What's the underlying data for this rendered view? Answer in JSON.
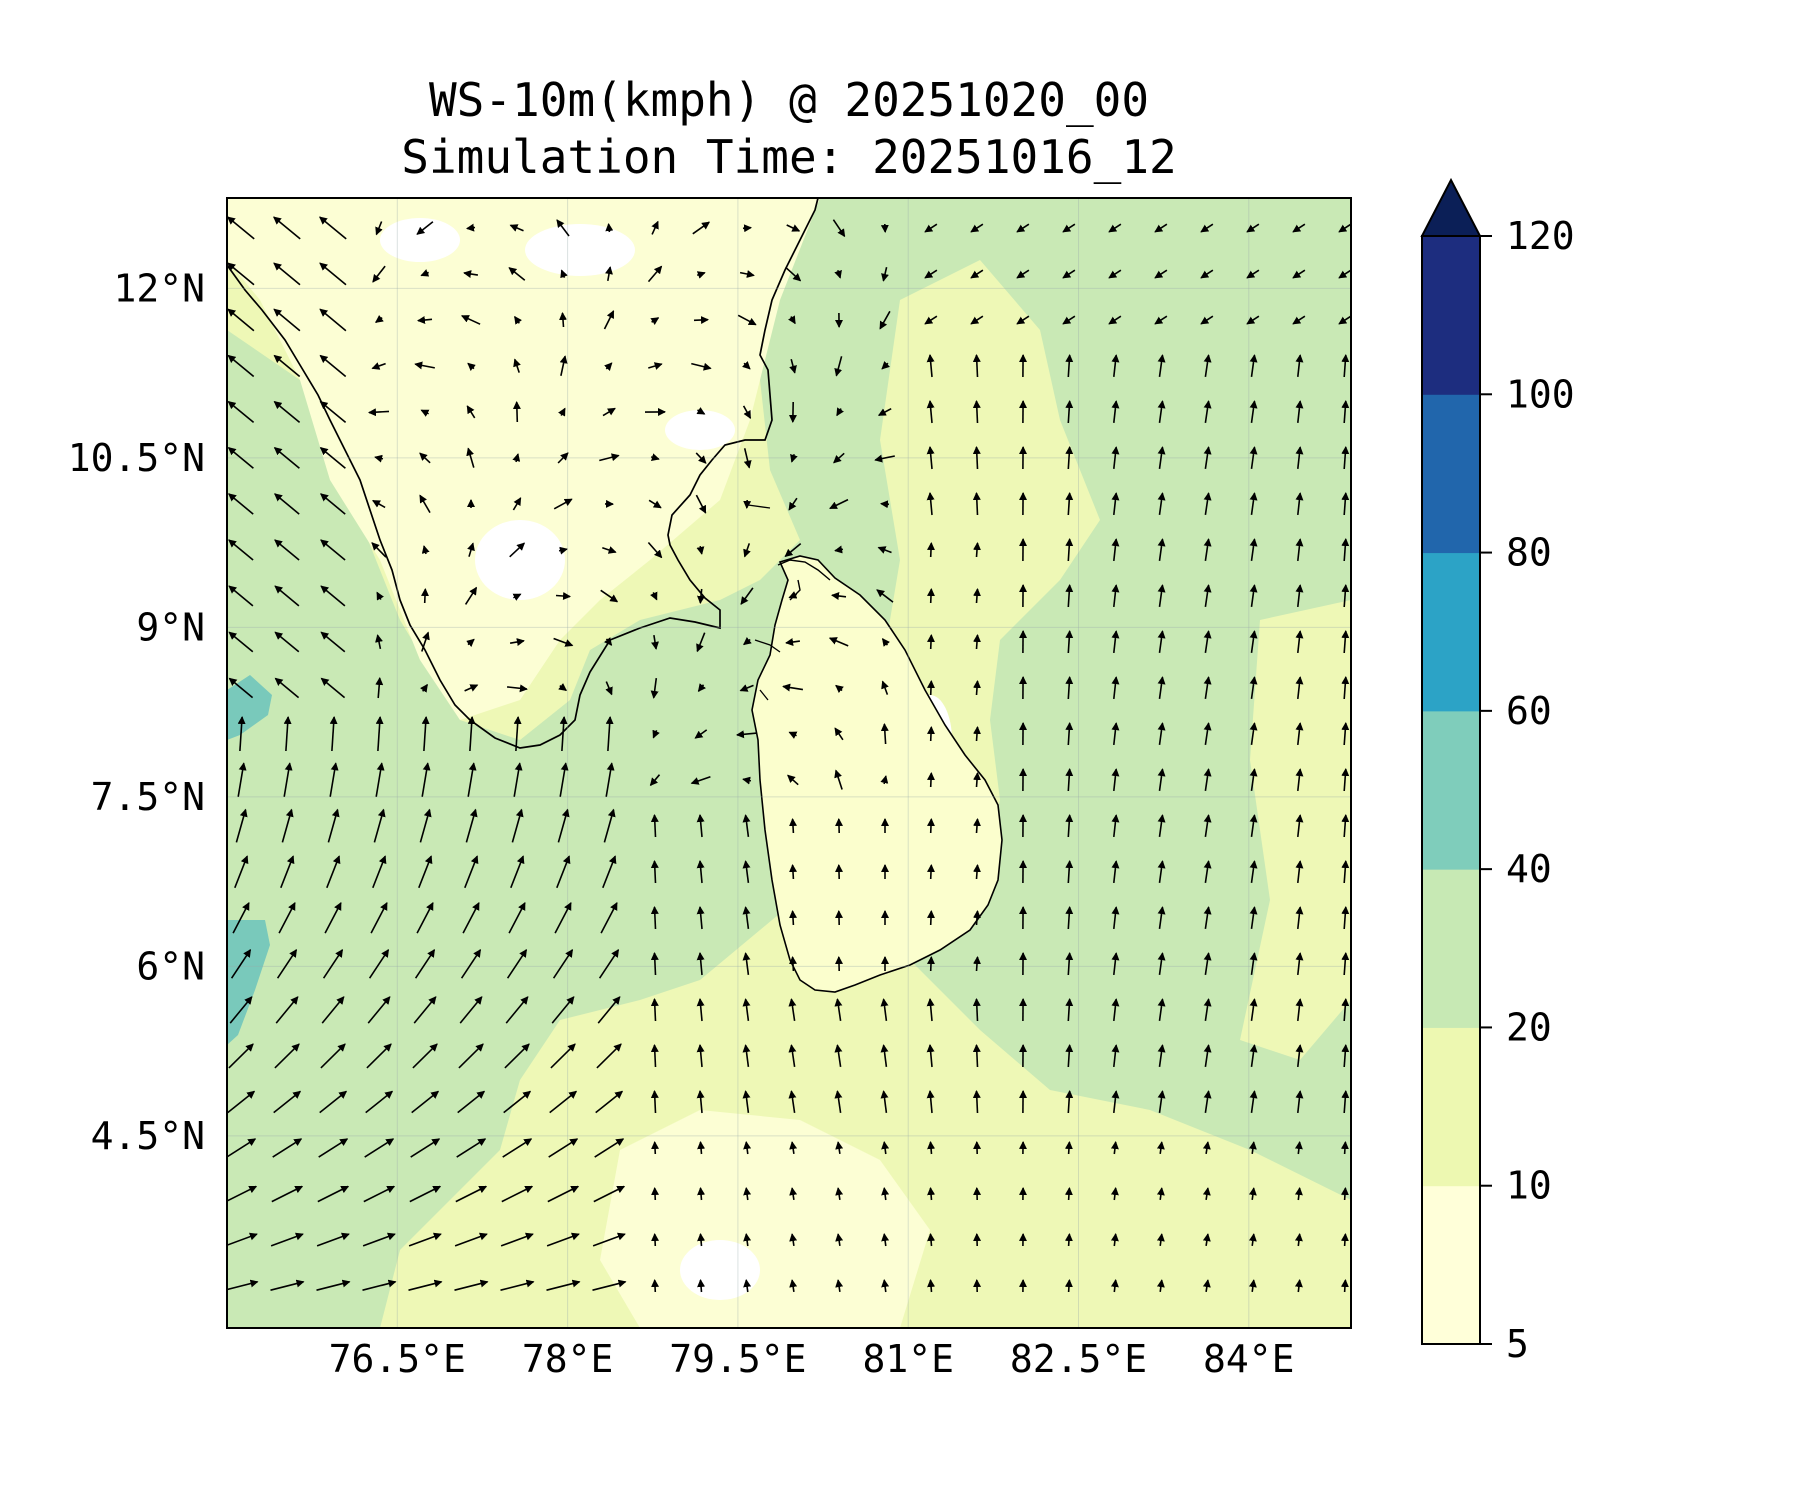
{
  "title": {
    "line1": "WS-10m(kmph) @ 20251020_00",
    "line2": "Simulation Time: 20251016_12"
  },
  "map": {
    "lon_range": [
      75.0,
      84.9
    ],
    "lat_range": [
      2.8,
      12.8
    ],
    "x_ticks": [
      {
        "lon": 76.5,
        "label": "76.5°E"
      },
      {
        "lon": 78.0,
        "label": "78°E"
      },
      {
        "lon": 79.5,
        "label": "79.5°E"
      },
      {
        "lon": 81.0,
        "label": "81°E"
      },
      {
        "lon": 82.5,
        "label": "82.5°E"
      },
      {
        "lon": 84.0,
        "label": "84°E"
      }
    ],
    "y_ticks": [
      {
        "lat": 12.0,
        "label": "12°N"
      },
      {
        "lat": 10.5,
        "label": "10.5°N"
      },
      {
        "lat": 9.0,
        "label": "9°N"
      },
      {
        "lat": 7.5,
        "label": "7.5°N"
      },
      {
        "lat": 6.0,
        "label": "6°N"
      },
      {
        "lat": 4.5,
        "label": "4.5°N"
      }
    ],
    "grid": true,
    "field_colors": [
      "#ffffd9",
      "#edf8b1",
      "#c7e9b4",
      "#7fcdbb",
      "#41b6c4",
      "#1d91c0",
      "#225ea8",
      "#0c2c84"
    ]
  },
  "colorbar": {
    "levels": [
      5,
      10,
      20,
      40,
      60,
      80,
      100,
      120
    ],
    "labels": [
      "5",
      "10",
      "20",
      "40",
      "60",
      "80",
      "100",
      "120"
    ],
    "colors": [
      "#ffffd9",
      "#edf8b1",
      "#c7e9b4",
      "#7fcdbb",
      "#2ca3c6",
      "#2166ac",
      "#1d2d7f"
    ],
    "extend_color": "#0b1f57",
    "extend": "max",
    "placement": "right"
  }
}
